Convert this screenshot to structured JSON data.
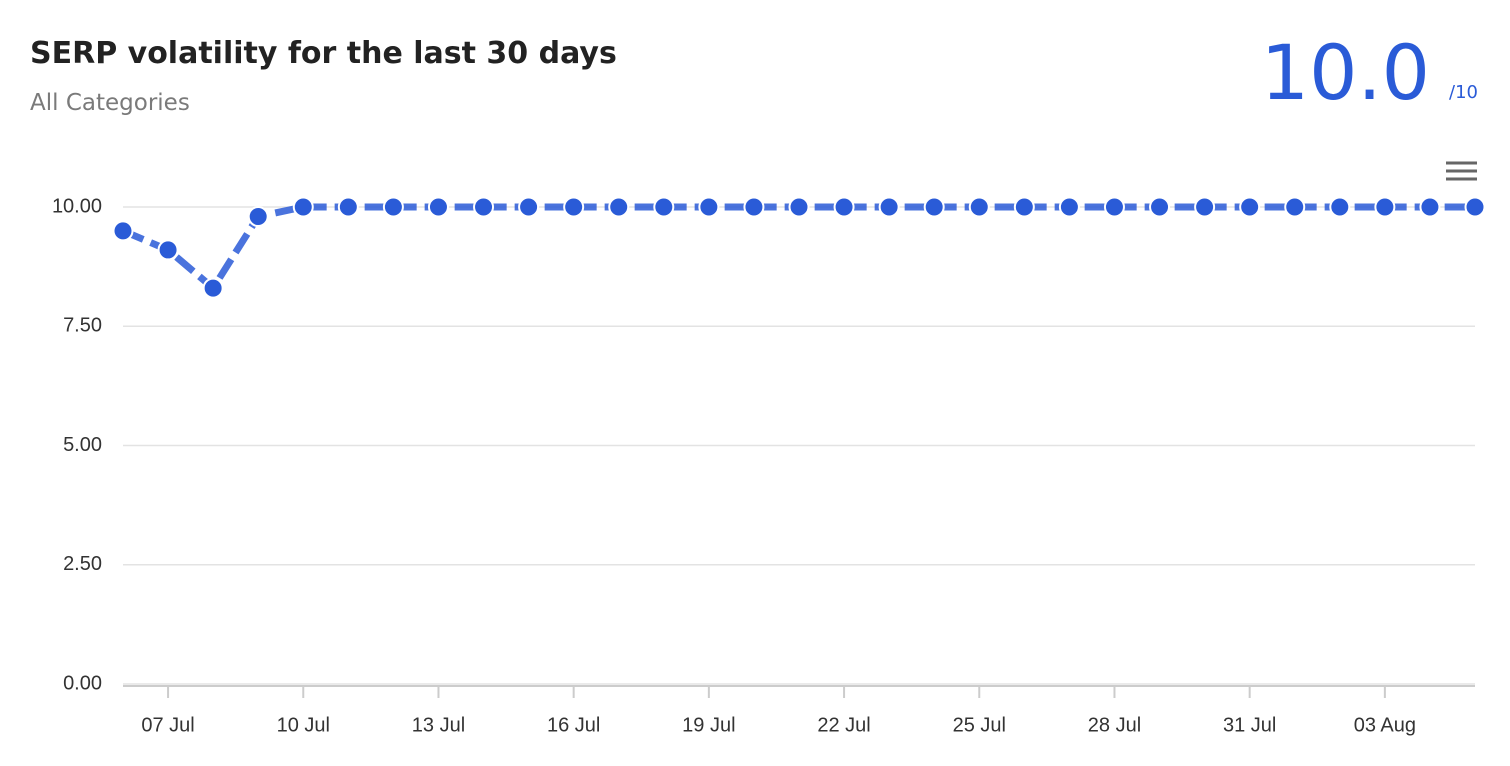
{
  "header": {
    "title": "SERP volatility for the last 30 days",
    "subtitle": "All Categories",
    "score": "10.0",
    "score_max": "/10"
  },
  "chart_data": {
    "type": "line",
    "categories": [
      null,
      "07 Jul",
      null,
      null,
      "10 Jul",
      null,
      null,
      "13 Jul",
      null,
      null,
      "16 Jul",
      null,
      null,
      "19 Jul",
      null,
      null,
      "22 Jul",
      null,
      null,
      "25 Jul",
      null,
      null,
      "28 Jul",
      null,
      null,
      "31 Jul",
      null,
      null,
      "03 Aug",
      null,
      null
    ],
    "series": [
      {
        "name": "SERP volatility",
        "color": "#2a5bd7",
        "values": [
          9.5,
          9.1,
          8.3,
          9.8,
          10,
          10,
          10,
          10,
          10,
          10,
          10,
          10,
          10,
          10,
          10,
          10,
          10,
          10,
          10,
          10,
          10,
          10,
          10,
          10,
          10,
          10,
          10,
          10,
          10,
          10,
          10
        ]
      }
    ],
    "ylim": [
      0,
      11
    ],
    "yticks": [
      {
        "value": 0,
        "label": "0.00"
      },
      {
        "value": 2.5,
        "label": "2.50"
      },
      {
        "value": 5,
        "label": "5.00"
      },
      {
        "value": 7.5,
        "label": "7.50"
      },
      {
        "value": 10,
        "label": "10.00"
      }
    ],
    "grid": true
  }
}
